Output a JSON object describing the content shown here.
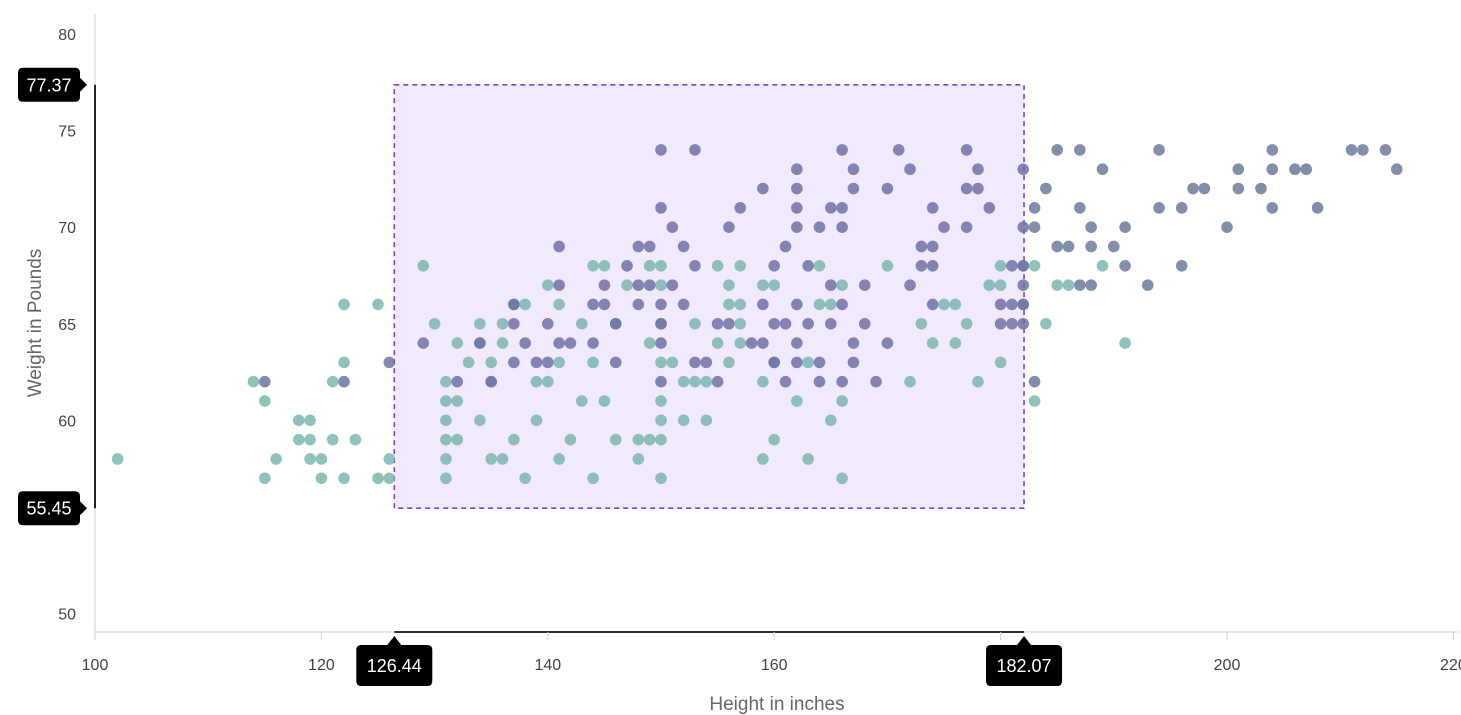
{
  "chart_data": {
    "type": "scatter",
    "xlabel": "Height in inches",
    "ylabel": "Weight in Pounds",
    "xlim": [
      100,
      220
    ],
    "ylim": [
      50,
      80
    ],
    "x_ticks": [
      "100",
      "120",
      "140",
      "160",
      "180",
      "200",
      "220"
    ],
    "y_ticks": [
      "50",
      "55",
      "60",
      "65",
      "70",
      "75",
      "80"
    ],
    "grid": false,
    "selection": {
      "x_range": [
        "126.44",
        "182.07"
      ],
      "y_range": [
        "55.45",
        "77.37"
      ]
    },
    "series": [
      {
        "color": "#78b4ad",
        "points": [
          [
            102,
            58
          ],
          [
            114,
            62
          ],
          [
            115,
            61
          ],
          [
            115,
            57
          ],
          [
            116,
            58
          ],
          [
            118,
            60
          ],
          [
            118,
            59
          ],
          [
            119,
            60
          ],
          [
            119,
            59
          ],
          [
            119,
            58
          ],
          [
            120,
            58
          ],
          [
            120,
            57
          ],
          [
            121,
            62
          ],
          [
            121,
            59
          ],
          [
            122,
            66
          ],
          [
            122,
            63
          ],
          [
            122,
            57
          ],
          [
            123,
            59
          ],
          [
            125,
            66
          ],
          [
            125,
            57
          ],
          [
            126,
            58
          ],
          [
            126,
            57
          ],
          [
            129,
            68
          ],
          [
            130,
            65
          ],
          [
            131,
            62
          ],
          [
            131,
            61
          ],
          [
            131,
            60
          ],
          [
            131,
            59
          ],
          [
            131,
            58
          ],
          [
            131,
            57
          ],
          [
            132,
            64
          ],
          [
            132,
            61
          ],
          [
            132,
            59
          ],
          [
            133,
            63
          ],
          [
            134,
            65
          ],
          [
            134,
            64
          ],
          [
            134,
            60
          ],
          [
            135,
            63
          ],
          [
            135,
            62
          ],
          [
            135,
            58
          ],
          [
            136,
            65
          ],
          [
            136,
            64
          ],
          [
            136,
            58
          ],
          [
            137,
            66
          ],
          [
            137,
            59
          ],
          [
            138,
            66
          ],
          [
            138,
            57
          ],
          [
            139,
            62
          ],
          [
            139,
            60
          ],
          [
            140,
            67
          ],
          [
            140,
            62
          ],
          [
            141,
            66
          ],
          [
            141,
            63
          ],
          [
            141,
            58
          ],
          [
            142,
            59
          ],
          [
            143,
            65
          ],
          [
            143,
            61
          ],
          [
            144,
            68
          ],
          [
            144,
            63
          ],
          [
            144,
            57
          ],
          [
            145,
            68
          ],
          [
            145,
            61
          ],
          [
            146,
            65
          ],
          [
            146,
            59
          ],
          [
            147,
            67
          ],
          [
            148,
            59
          ],
          [
            148,
            58
          ],
          [
            149,
            68
          ],
          [
            149,
            59
          ],
          [
            149,
            64
          ],
          [
            150,
            67
          ],
          [
            150,
            68
          ],
          [
            150,
            65
          ],
          [
            150,
            63
          ],
          [
            150,
            61
          ],
          [
            150,
            60
          ],
          [
            150,
            59
          ],
          [
            150,
            57
          ],
          [
            151,
            63
          ],
          [
            152,
            62
          ],
          [
            152,
            60
          ],
          [
            153,
            65
          ],
          [
            153,
            62
          ],
          [
            154,
            62
          ],
          [
            154,
            60
          ],
          [
            155,
            68
          ],
          [
            155,
            64
          ],
          [
            156,
            67
          ],
          [
            156,
            66
          ],
          [
            156,
            63
          ],
          [
            157,
            68
          ],
          [
            157,
            66
          ],
          [
            157,
            65
          ],
          [
            157,
            64
          ],
          [
            159,
            67
          ],
          [
            159,
            62
          ],
          [
            159,
            58
          ],
          [
            160,
            67
          ],
          [
            160,
            63
          ],
          [
            160,
            59
          ],
          [
            162,
            61
          ],
          [
            163,
            63
          ],
          [
            163,
            58
          ],
          [
            164,
            68
          ],
          [
            164,
            66
          ],
          [
            165,
            66
          ],
          [
            165,
            60
          ],
          [
            166,
            67
          ],
          [
            166,
            61
          ],
          [
            166,
            57
          ],
          [
            170,
            68
          ],
          [
            172,
            62
          ],
          [
            173,
            65
          ],
          [
            174,
            64
          ],
          [
            175,
            66
          ],
          [
            176,
            66
          ],
          [
            176,
            64
          ],
          [
            177,
            65
          ],
          [
            178,
            62
          ],
          [
            179,
            67
          ],
          [
            180,
            68
          ],
          [
            180,
            67
          ],
          [
            180,
            63
          ],
          [
            182,
            68
          ],
          [
            182,
            66
          ],
          [
            183,
            68
          ],
          [
            183,
            61
          ],
          [
            184,
            65
          ],
          [
            185,
            67
          ],
          [
            186,
            67
          ],
          [
            189,
            68
          ],
          [
            191,
            64
          ]
        ]
      },
      {
        "color": "#6b6ea3",
        "points": [
          [
            115,
            62
          ],
          [
            122,
            62
          ],
          [
            126,
            63
          ],
          [
            129,
            64
          ],
          [
            132,
            62
          ],
          [
            134,
            64
          ],
          [
            135,
            62
          ],
          [
            137,
            66
          ],
          [
            137,
            65
          ],
          [
            137,
            63
          ],
          [
            138,
            64
          ],
          [
            139,
            63
          ],
          [
            140,
            65
          ],
          [
            140,
            63
          ],
          [
            141,
            69
          ],
          [
            141,
            67
          ],
          [
            141,
            64
          ],
          [
            142,
            64
          ],
          [
            144,
            66
          ],
          [
            144,
            64
          ],
          [
            145,
            67
          ],
          [
            145,
            66
          ],
          [
            146,
            65
          ],
          [
            146,
            63
          ],
          [
            147,
            68
          ],
          [
            148,
            69
          ],
          [
            148,
            67
          ],
          [
            148,
            66
          ],
          [
            149,
            69
          ],
          [
            149,
            67
          ],
          [
            150,
            74
          ],
          [
            150,
            71
          ],
          [
            150,
            66
          ],
          [
            150,
            65
          ],
          [
            150,
            64
          ],
          [
            150,
            62
          ],
          [
            151,
            70
          ],
          [
            151,
            67
          ],
          [
            152,
            69
          ],
          [
            152,
            66
          ],
          [
            153,
            74
          ],
          [
            153,
            68
          ],
          [
            153,
            63
          ],
          [
            154,
            63
          ],
          [
            155,
            65
          ],
          [
            155,
            62
          ],
          [
            156,
            70
          ],
          [
            156,
            65
          ],
          [
            157,
            71
          ],
          [
            158,
            64
          ],
          [
            159,
            72
          ],
          [
            159,
            66
          ],
          [
            159,
            64
          ],
          [
            160,
            68
          ],
          [
            160,
            65
          ],
          [
            160,
            63
          ],
          [
            161,
            69
          ],
          [
            161,
            65
          ],
          [
            161,
            62
          ],
          [
            162,
            73
          ],
          [
            162,
            72
          ],
          [
            162,
            71
          ],
          [
            162,
            70
          ],
          [
            162,
            66
          ],
          [
            162,
            64
          ],
          [
            162,
            63
          ],
          [
            163,
            68
          ],
          [
            163,
            65
          ],
          [
            164,
            70
          ],
          [
            164,
            63
          ],
          [
            164,
            62
          ],
          [
            165,
            71
          ],
          [
            165,
            67
          ],
          [
            165,
            65
          ],
          [
            166,
            74
          ],
          [
            166,
            71
          ],
          [
            166,
            70
          ],
          [
            166,
            66
          ],
          [
            166,
            62
          ],
          [
            167,
            73
          ],
          [
            167,
            72
          ],
          [
            167,
            64
          ],
          [
            167,
            63
          ],
          [
            168,
            67
          ],
          [
            168,
            65
          ],
          [
            169,
            62
          ],
          [
            170,
            72
          ],
          [
            170,
            64
          ],
          [
            171,
            74
          ],
          [
            172,
            73
          ],
          [
            172,
            67
          ],
          [
            173,
            69
          ],
          [
            173,
            68
          ],
          [
            174,
            71
          ],
          [
            174,
            69
          ],
          [
            174,
            68
          ],
          [
            174,
            66
          ],
          [
            175,
            70
          ],
          [
            177,
            74
          ],
          [
            177,
            72
          ],
          [
            177,
            70
          ],
          [
            178,
            73
          ],
          [
            178,
            72
          ],
          [
            179,
            71
          ],
          [
            180,
            66
          ],
          [
            180,
            65
          ],
          [
            181,
            68
          ],
          [
            181,
            66
          ],
          [
            181,
            65
          ],
          [
            182,
            73
          ],
          [
            182,
            70
          ],
          [
            182,
            68
          ],
          [
            182,
            67
          ],
          [
            182,
            66
          ],
          [
            182,
            65
          ]
        ]
      },
      {
        "color": "#657696",
        "points": [
          [
            183,
            71
          ],
          [
            183,
            70
          ],
          [
            183,
            62
          ],
          [
            184,
            72
          ],
          [
            185,
            74
          ],
          [
            185,
            69
          ],
          [
            186,
            69
          ],
          [
            187,
            74
          ],
          [
            187,
            71
          ],
          [
            187,
            67
          ],
          [
            188,
            70
          ],
          [
            188,
            69
          ],
          [
            188,
            67
          ],
          [
            189,
            73
          ],
          [
            190,
            69
          ],
          [
            191,
            70
          ],
          [
            191,
            68
          ],
          [
            193,
            67
          ],
          [
            194,
            74
          ],
          [
            194,
            71
          ],
          [
            196,
            71
          ],
          [
            196,
            68
          ],
          [
            197,
            72
          ],
          [
            198,
            72
          ],
          [
            200,
            70
          ],
          [
            201,
            73
          ],
          [
            201,
            72
          ],
          [
            203,
            72
          ],
          [
            204,
            74
          ],
          [
            204,
            73
          ],
          [
            204,
            71
          ],
          [
            206,
            73
          ],
          [
            207,
            73
          ],
          [
            208,
            71
          ],
          [
            211,
            74
          ],
          [
            212,
            74
          ],
          [
            214,
            74
          ],
          [
            215,
            73
          ]
        ]
      }
    ]
  },
  "colors": {
    "selection_fill": "#f1eafc",
    "selection_border": "#7a3fe0",
    "badge": "#000000",
    "axis": "#d0d0d0"
  }
}
